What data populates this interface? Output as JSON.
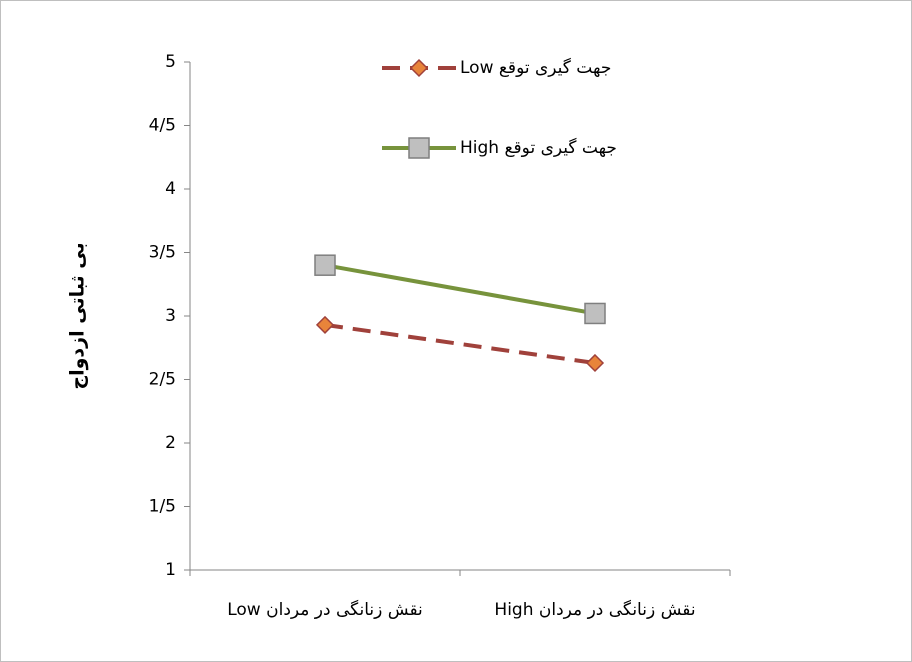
{
  "chart_data": {
    "type": "line",
    "y_label": "بی ثباتی ازدواج",
    "categories": [
      "نقش زنانگی در مردان Low",
      "نقش زنانگی در مردان High"
    ],
    "series": [
      {
        "name": "جهت گیری توقع Low",
        "color": "#a0413b",
        "marker_color": "#e8843a",
        "marker": "diamond",
        "dashed": true,
        "values": [
          2.93,
          2.63
        ]
      },
      {
        "name": "جهت گیری توقع High",
        "color": "#77933c",
        "marker_color": "#bfbfbf",
        "marker": "square",
        "dashed": false,
        "values": [
          3.4,
          3.02
        ]
      }
    ],
    "ylim": [
      1,
      5
    ],
    "yticks": [
      1,
      {
        "value": 1.5,
        "label": "1/5"
      },
      2,
      {
        "value": 2.5,
        "label": "2/5"
      },
      3,
      {
        "value": 3.5,
        "label": "3/5"
      },
      4,
      {
        "value": 4.5,
        "label": "4/5"
      },
      5
    ],
    "grid": false,
    "legend": "top"
  }
}
